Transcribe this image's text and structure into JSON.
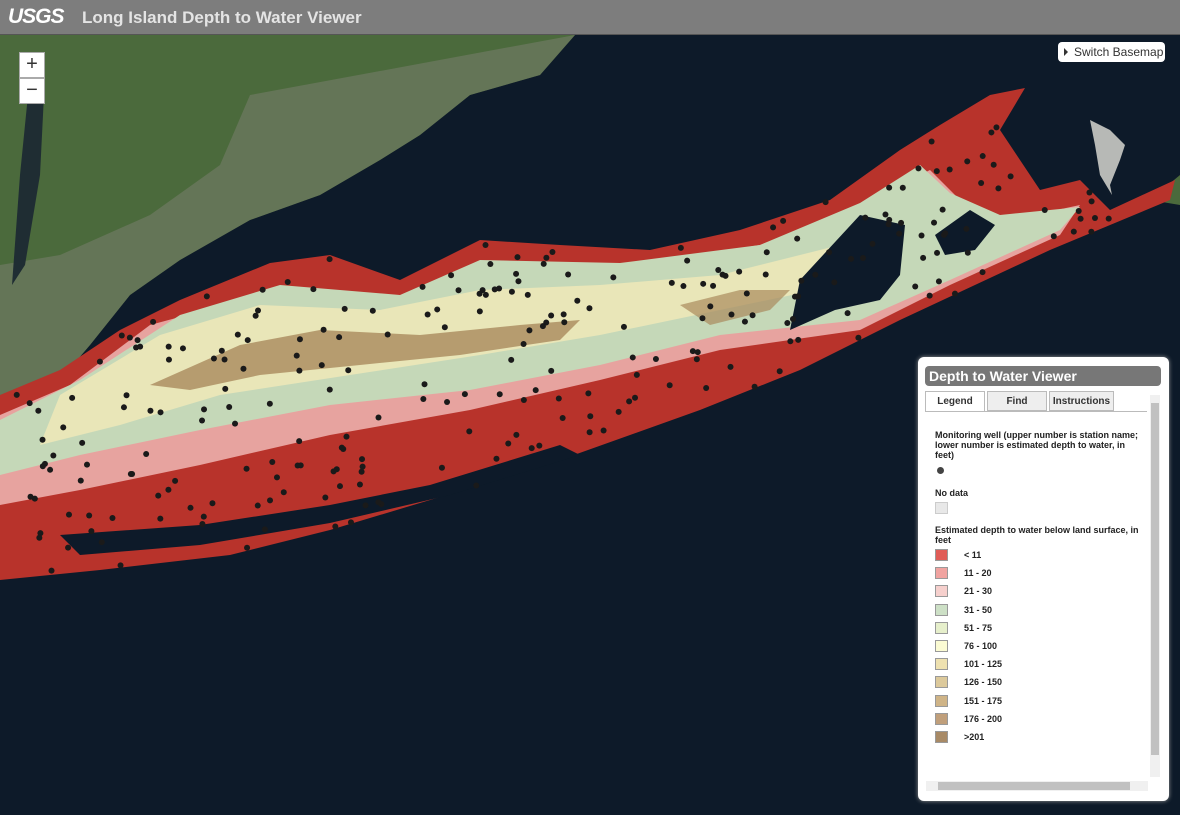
{
  "header": {
    "logo": "USGS",
    "title": "Long Island Depth to Water Viewer"
  },
  "map": {
    "zoom_in": "+",
    "zoom_out": "−",
    "basemap_button": "Switch Basemap"
  },
  "panel": {
    "title": "Depth to Water Viewer",
    "tabs": [
      "Legend",
      "Find",
      "Instructions"
    ],
    "active_tab": 0,
    "legend": {
      "well_label": "Monitoring well (upper number is station name; lower number is estimated depth to water, in feet)",
      "no_data_label": "No data",
      "depth_heading": "Estimated depth to water below land surface, in feet",
      "classes": [
        {
          "label": "< 11",
          "color": "#e05c57"
        },
        {
          "label": "11 - 20",
          "color": "#f0a3a0"
        },
        {
          "label": "21 - 30",
          "color": "#f6d0cd"
        },
        {
          "label": "31 - 50",
          "color": "#cde0c6"
        },
        {
          "label": "51 - 75",
          "color": "#e6efcb"
        },
        {
          "label": "76 - 100",
          "color": "#fbfbd3"
        },
        {
          "label": "101 - 125",
          "color": "#eee1b0"
        },
        {
          "label": "126 - 150",
          "color": "#dcc99b"
        },
        {
          "label": "151 - 175",
          "color": "#cfb487"
        },
        {
          "label": "176 - 200",
          "color": "#c09f7b"
        },
        {
          "label": ">201",
          "color": "#a88a66"
        }
      ]
    }
  }
}
